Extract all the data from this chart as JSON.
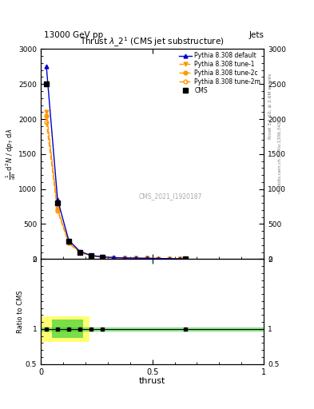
{
  "title": "13000 GeV pp",
  "jets_label": "Jets",
  "plot_title": "Thrust $\\lambda$_2$^1$ (CMS jet substructure)",
  "watermark": "CMS_2021_I1920187",
  "rivet_text": "Rivet 3.1.10, ≥ 2.6M events",
  "arxiv_text": "mcplots.cern.ch [arXiv:1306.3436]",
  "xlabel": "thrust",
  "ylabel_ratio": "Ratio to CMS",
  "xlim": [
    0.0,
    1.0
  ],
  "ylim_main": [
    0,
    3000
  ],
  "ylim_ratio": [
    0.5,
    2.0
  ],
  "cms_data_x": [
    0.025,
    0.075,
    0.125,
    0.175,
    0.225,
    0.275,
    0.65
  ],
  "cms_data_y": [
    2500,
    800,
    250,
    100,
    50,
    30,
    2
  ],
  "pythia_default_x": [
    0.025,
    0.075,
    0.125,
    0.175,
    0.225,
    0.275,
    0.325,
    0.375,
    0.425,
    0.475,
    0.525,
    0.575,
    0.625,
    0.65
  ],
  "pythia_default_y": [
    2750,
    850,
    270,
    110,
    52,
    32,
    21,
    16,
    13,
    11,
    8.5,
    5.5,
    3.2,
    2.1
  ],
  "pythia_tune1_x": [
    0.025,
    0.075,
    0.125,
    0.175,
    0.225,
    0.275,
    0.325,
    0.375,
    0.425,
    0.475,
    0.525,
    0.575,
    0.625,
    0.65
  ],
  "pythia_tune1_y": [
    2100,
    720,
    240,
    98,
    48,
    29,
    19,
    14,
    11,
    9.5,
    7.5,
    5.0,
    3.0,
    1.9
  ],
  "pythia_tune2c_x": [
    0.025,
    0.075,
    0.125,
    0.175,
    0.225,
    0.275,
    0.325,
    0.375,
    0.425,
    0.475,
    0.525,
    0.575,
    0.625,
    0.65
  ],
  "pythia_tune2c_y": [
    2050,
    710,
    235,
    96,
    47,
    28,
    18.5,
    13.5,
    11,
    9.0,
    7.2,
    4.8,
    2.9,
    1.8
  ],
  "pythia_tune2m_x": [
    0.025,
    0.075,
    0.125,
    0.175,
    0.225,
    0.275,
    0.325,
    0.375,
    0.425,
    0.475,
    0.525,
    0.575,
    0.625,
    0.65
  ],
  "pythia_tune2m_y": [
    1950,
    690,
    228,
    93,
    46,
    27,
    18,
    13,
    10.5,
    8.8,
    7.0,
    4.6,
    2.8,
    1.75
  ],
  "color_default": "#0000cc",
  "color_tune1": "#ff9900",
  "color_tune2c": "#ff9900",
  "color_tune2m": "#ff9900",
  "main_yticks": [
    0,
    500,
    1000,
    1500,
    2000,
    2500,
    3000
  ],
  "ratio_yticks": [
    0.5,
    1.0,
    2.0
  ],
  "xticks": [
    0.0,
    0.5,
    1.0
  ],
  "xticklabels": [
    "0",
    "0.5",
    "1"
  ]
}
